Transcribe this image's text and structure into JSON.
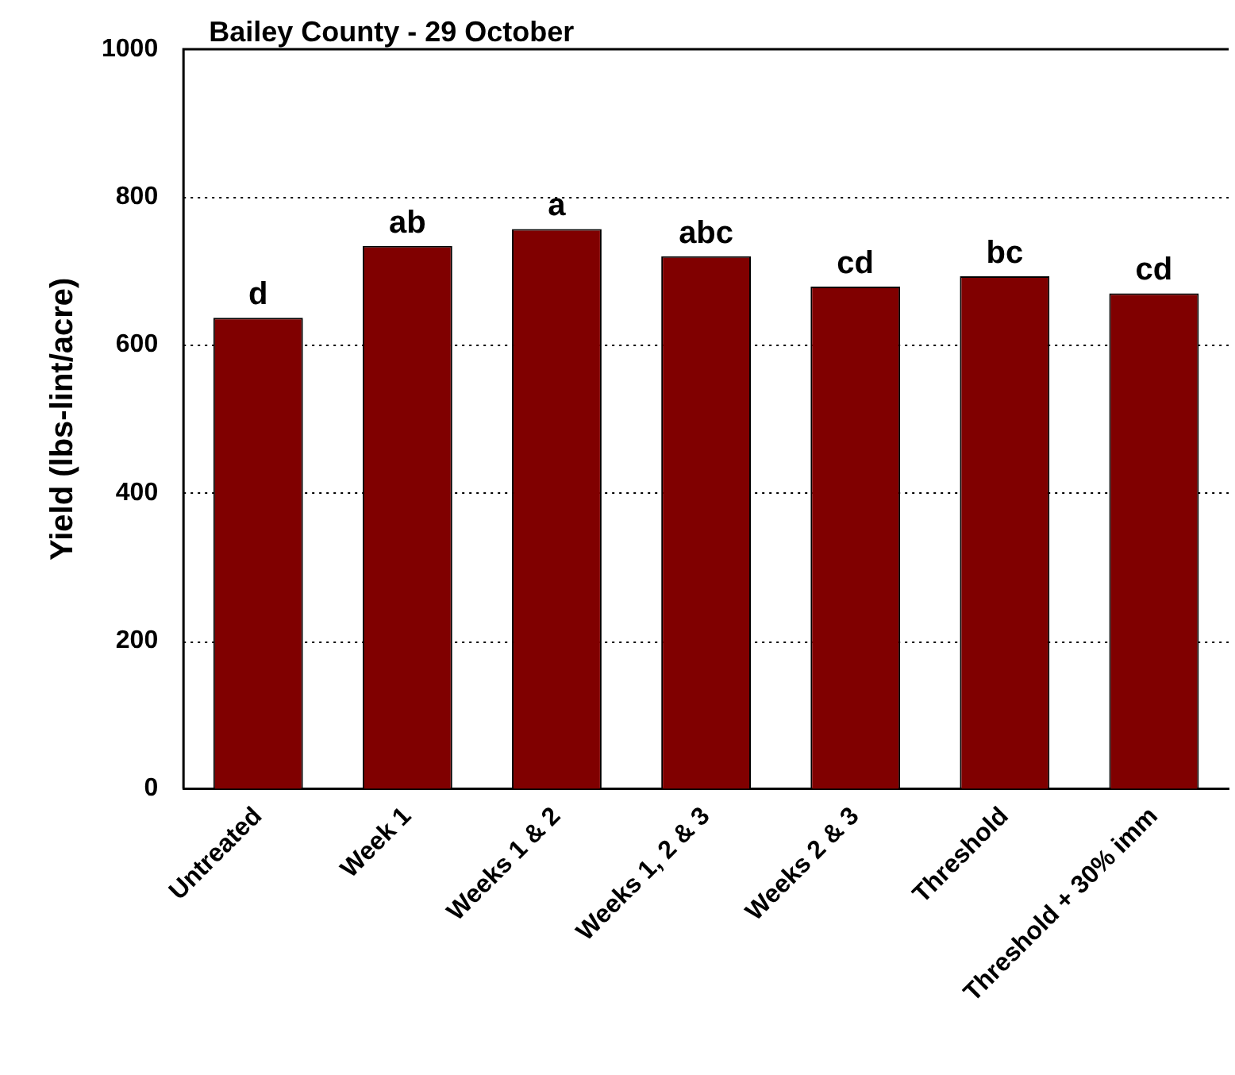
{
  "chart_data": {
    "type": "bar",
    "title": "Bailey County - 29 October",
    "ylabel": "Yield (lbs-lint/acre)",
    "categories": [
      "Untreated",
      "Week 1",
      "Weeks 1 & 2",
      "Weeks 1, 2 & 3",
      "Weeks 2 & 3",
      "Threshold",
      "Threshold + 30% imm"
    ],
    "values": [
      637,
      734,
      757,
      720,
      679,
      693,
      670
    ],
    "color": "#800000",
    "ylim": [
      0,
      1000
    ],
    "yticks": [
      0,
      200,
      400,
      600,
      800,
      1000
    ],
    "grid": "y",
    "legend": false,
    "annotations": [
      {
        "text": "d",
        "x": "Untreated",
        "y": 637
      },
      {
        "text": "ab",
        "x": "Week 1",
        "y": 734
      },
      {
        "text": "a",
        "x": "Weeks 1 & 2",
        "y": 757
      },
      {
        "text": "abc",
        "x": "Weeks 1, 2 & 3",
        "y": 720
      },
      {
        "text": "cd",
        "x": "Weeks 2 & 3",
        "y": 679
      },
      {
        "text": "bc",
        "x": "Threshold",
        "y": 693
      },
      {
        "text": "cd",
        "x": "Threshold + 30% imm",
        "y": 670
      }
    ]
  }
}
